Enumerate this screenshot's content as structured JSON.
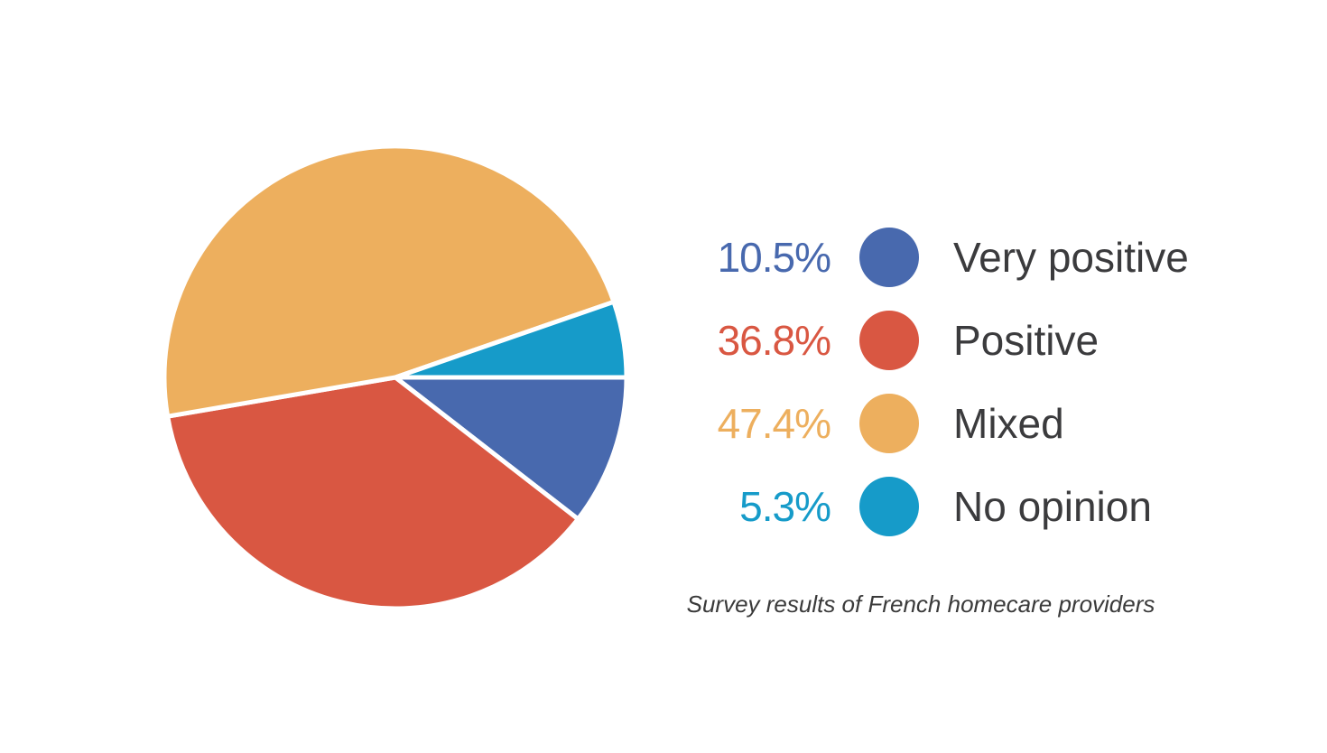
{
  "chart_data": {
    "type": "pie",
    "caption": "Survey results of French homecare providers",
    "legend_position": "right",
    "start_angle_deg": 0,
    "direction": "clockwise",
    "gap_color": "#ffffff",
    "segments": [
      {
        "label": "Very positive",
        "value": 10.5,
        "pct_label": "10.5%",
        "color": "#4869ae"
      },
      {
        "label": "Positive",
        "value": 36.8,
        "pct_label": "36.8%",
        "color": "#d95742"
      },
      {
        "label": "Mixed",
        "value": 47.4,
        "pct_label": "47.4%",
        "color": "#edaf5e"
      },
      {
        "label": "No opinion",
        "value": 5.3,
        "pct_label": "5.3%",
        "color": "#169bc9"
      }
    ]
  },
  "colors": {
    "background": "#ffffff",
    "legend_label_text": "#3b3b3d",
    "caption_text": "#3a3a3a"
  }
}
